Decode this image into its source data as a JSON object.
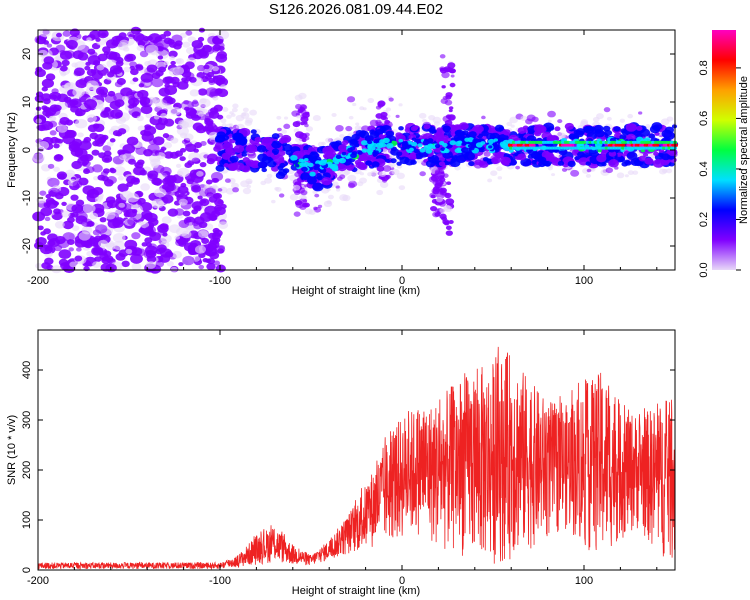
{
  "title": "S126.2026.081.09.44.E02",
  "chart_data": [
    {
      "type": "heatmap",
      "name": "spectrogram",
      "xlabel": "Height of straight line (km)",
      "ylabel": "Frequency (Hz)",
      "xlim": [
        -200,
        150
      ],
      "ylim": [
        -25,
        25
      ],
      "xticks": [
        -200,
        -100,
        0,
        100
      ],
      "xtick_labels": [
        "-200",
        "-100",
        "0",
        "100"
      ],
      "yticks": [
        -20,
        -10,
        0,
        10,
        20
      ],
      "ytick_labels": [
        "-20",
        "-10",
        "0",
        "10",
        "20"
      ],
      "trace_ridge": [
        {
          "x": -100,
          "y": 0
        },
        {
          "x": -80,
          "y": 0
        },
        {
          "x": -60,
          "y": -2
        },
        {
          "x": -48,
          "y": -4
        },
        {
          "x": -38,
          "y": -3
        },
        {
          "x": -25,
          "y": 0
        },
        {
          "x": -10,
          "y": 1
        },
        {
          "x": 0,
          "y": 1
        },
        {
          "x": 20,
          "y": 1
        },
        {
          "x": 40,
          "y": 1
        },
        {
          "x": 60,
          "y": 1
        },
        {
          "x": 100,
          "y": 1
        },
        {
          "x": 150,
          "y": 1
        }
      ],
      "colorbar": {
        "label": "Normalized spectral amplitude",
        "range": [
          0,
          0.95
        ],
        "ticks": [
          0.0,
          0.2,
          0.4,
          0.6,
          0.8
        ],
        "tick_labels": [
          "0.0",
          "0.2",
          "0.4",
          "0.6",
          "0.8"
        ],
        "colors": [
          "#e8d8f8",
          "#8000ff",
          "#0000ff",
          "#00e0ff",
          "#00ff40",
          "#d0ff00",
          "#ffa000",
          "#ff0000",
          "#ff00c0"
        ]
      }
    },
    {
      "type": "line",
      "name": "snr",
      "xlabel": "Height of straight line (km)",
      "ylabel": "SNR (10 * v/v)",
      "xlim": [
        -200,
        150
      ],
      "ylim": [
        0,
        480
      ],
      "xticks": [
        -200,
        -100,
        0,
        100
      ],
      "xtick_labels": [
        "-200",
        "-100",
        "0",
        "100"
      ],
      "yticks": [
        0,
        100,
        200,
        300,
        400
      ],
      "ytick_labels": [
        "0",
        "100",
        "200",
        "300",
        "400"
      ],
      "color": "#ee2222",
      "envelope": {
        "x": [
          -200,
          -100,
          -90,
          -80,
          -70,
          -60,
          -50,
          -40,
          -30,
          -20,
          -10,
          0,
          10,
          20,
          30,
          40,
          50,
          60,
          70,
          80,
          90,
          100,
          110,
          120,
          130,
          140,
          150
        ],
        "upper": [
          15,
          15,
          30,
          70,
          90,
          50,
          30,
          60,
          110,
          170,
          250,
          310,
          330,
          340,
          380,
          400,
          420,
          440,
          380,
          340,
          330,
          370,
          400,
          330,
          310,
          330,
          340
        ],
        "lower": [
          2,
          2,
          5,
          10,
          15,
          10,
          8,
          20,
          30,
          40,
          50,
          60,
          70,
          40,
          30,
          20,
          10,
          20,
          40,
          60,
          80,
          40,
          20,
          60,
          80,
          30,
          10
        ]
      }
    }
  ]
}
